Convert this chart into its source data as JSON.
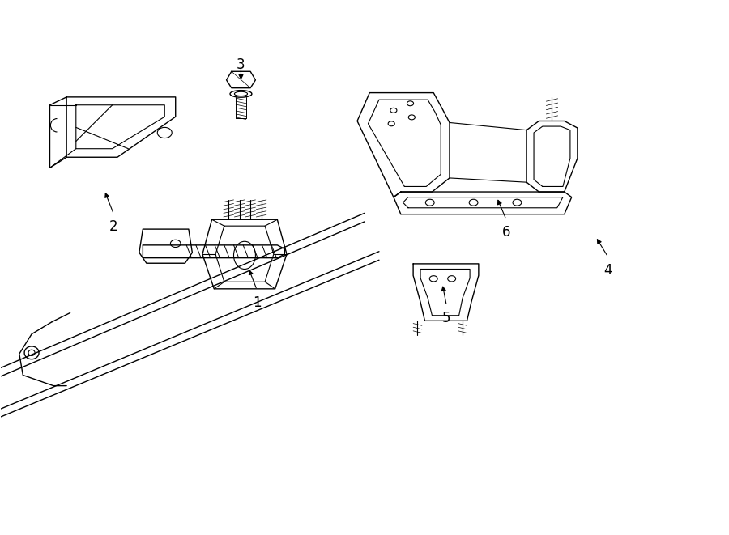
{
  "background_color": "#ffffff",
  "line_color": "#000000",
  "label_color": "#000000",
  "fig_width": 9.0,
  "fig_height": 6.61,
  "dpi": 100
}
